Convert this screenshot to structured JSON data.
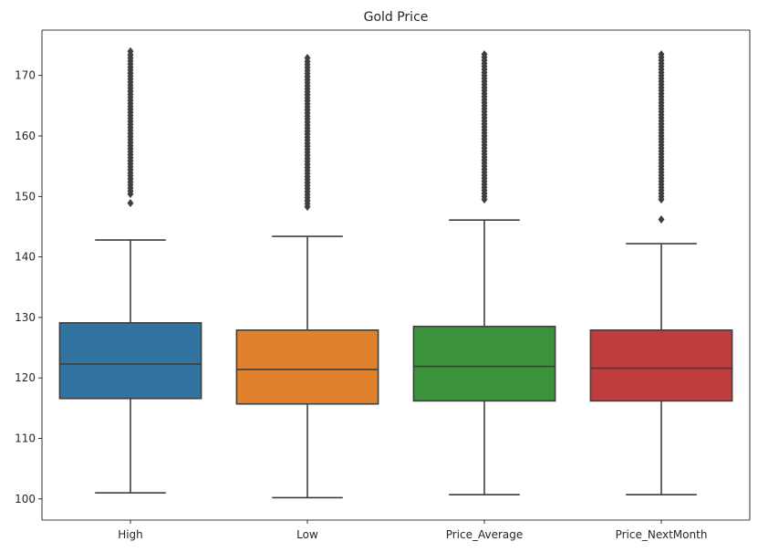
{
  "chart_data": {
    "type": "box",
    "title": "Gold Price",
    "xlabel": "",
    "ylabel": "",
    "ylim": [
      96.5,
      177.5
    ],
    "yticks": [
      100,
      110,
      120,
      130,
      140,
      150,
      160,
      170
    ],
    "categories": [
      "High",
      "Low",
      "Price_Average",
      "Price_NextMonth"
    ],
    "boxes": [
      {
        "name": "High",
        "color": "#3274a1",
        "whisker_low": 101.0,
        "q1": 116.6,
        "median": 122.3,
        "q3": 129.1,
        "whisker_high": 142.8,
        "outliers": [
          148.9,
          150.4,
          150.9,
          151.4,
          151.9,
          152.4,
          152.9,
          153.4,
          153.9,
          154.4,
          154.9,
          155.4,
          155.9,
          156.4,
          156.9,
          157.4,
          157.9,
          158.4,
          158.9,
          159.4,
          159.9,
          160.4,
          160.9,
          161.4,
          161.9,
          162.4,
          162.9,
          163.4,
          163.9,
          164.4,
          164.9,
          165.4,
          165.9,
          166.4,
          166.9,
          167.4,
          167.9,
          168.4,
          168.9,
          169.4,
          169.9,
          170.4,
          170.9,
          171.4,
          171.9,
          172.4,
          172.9,
          173.4,
          174.0
        ]
      },
      {
        "name": "Low",
        "color": "#e1812c",
        "whisker_low": 100.2,
        "q1": 115.7,
        "median": 121.4,
        "q3": 127.9,
        "whisker_high": 143.4,
        "outliers": [
          148.3,
          148.8,
          149.3,
          149.8,
          150.3,
          150.8,
          151.3,
          151.8,
          152.3,
          152.8,
          153.3,
          153.8,
          154.3,
          154.8,
          155.3,
          155.8,
          156.3,
          156.8,
          157.3,
          157.8,
          158.3,
          158.8,
          159.3,
          159.8,
          160.3,
          160.8,
          161.3,
          161.8,
          162.3,
          162.8,
          163.3,
          163.8,
          164.3,
          164.8,
          165.3,
          165.8,
          166.3,
          166.8,
          167.3,
          167.8,
          168.3,
          168.8,
          169.3,
          169.8,
          170.3,
          170.8,
          171.3,
          171.8,
          172.3,
          172.9
        ]
      },
      {
        "name": "Price_Average",
        "color": "#3a923a",
        "whisker_low": 100.7,
        "q1": 116.2,
        "median": 121.9,
        "q3": 128.5,
        "whisker_high": 146.1,
        "outliers": [
          149.5,
          150.0,
          150.5,
          151.0,
          151.5,
          152.0,
          152.5,
          153.0,
          153.5,
          154.0,
          154.5,
          155.0,
          155.5,
          156.0,
          156.5,
          157.0,
          157.5,
          158.0,
          158.5,
          159.0,
          159.5,
          160.0,
          160.5,
          161.0,
          161.5,
          162.0,
          162.5,
          163.0,
          163.5,
          164.0,
          164.5,
          165.0,
          165.5,
          166.0,
          166.5,
          167.0,
          167.5,
          168.0,
          168.5,
          169.0,
          169.5,
          170.0,
          170.5,
          171.0,
          171.5,
          172.0,
          172.5,
          173.0,
          173.5
        ]
      },
      {
        "name": "Price_NextMonth",
        "color": "#c03d3e",
        "whisker_low": 100.7,
        "q1": 116.2,
        "median": 121.6,
        "q3": 127.9,
        "whisker_high": 142.2,
        "outliers": [
          146.2,
          149.5,
          150.0,
          150.5,
          151.0,
          151.5,
          152.0,
          152.5,
          153.0,
          153.5,
          154.0,
          154.5,
          155.0,
          155.5,
          156.0,
          156.5,
          157.0,
          157.5,
          158.0,
          158.5,
          159.0,
          159.5,
          160.0,
          160.5,
          161.0,
          161.5,
          162.0,
          162.5,
          163.0,
          163.5,
          164.0,
          164.5,
          165.0,
          165.5,
          166.0,
          166.5,
          167.0,
          167.5,
          168.0,
          168.5,
          169.0,
          169.5,
          170.0,
          170.5,
          171.0,
          171.5,
          172.0,
          172.5,
          173.0,
          173.5
        ]
      }
    ],
    "grid": false,
    "legend": "none",
    "line_color": "#3f3f3f"
  }
}
